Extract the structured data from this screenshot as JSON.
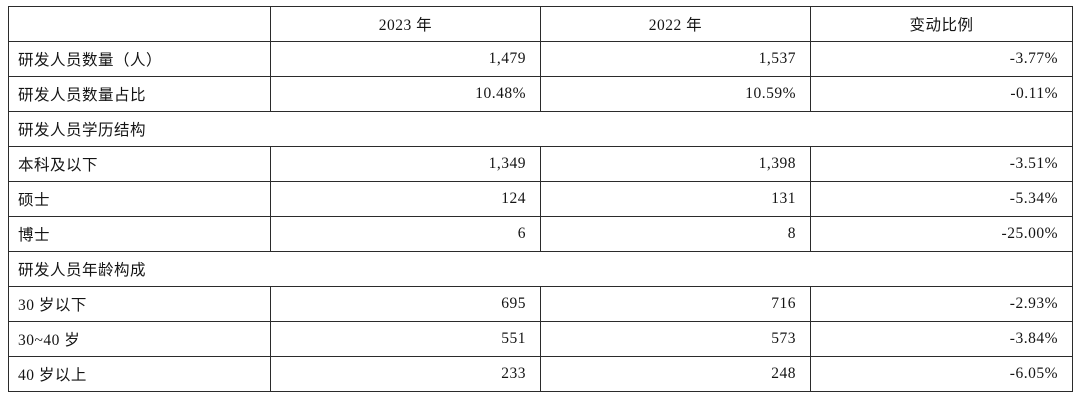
{
  "table": {
    "headers": [
      "",
      "2023 年",
      "2022 年",
      "变动比例"
    ],
    "rows": [
      {
        "type": "data",
        "label": "研发人员数量（人）",
        "v2023": "1,479",
        "v2022": "1,537",
        "change": "-3.77%"
      },
      {
        "type": "data",
        "label": "研发人员数量占比",
        "v2023": "10.48%",
        "v2022": "10.59%",
        "change": "-0.11%"
      },
      {
        "type": "section",
        "label": "研发人员学历结构"
      },
      {
        "type": "data",
        "label": "本科及以下",
        "v2023": "1,349",
        "v2022": "1,398",
        "change": "-3.51%"
      },
      {
        "type": "data",
        "label": "硕士",
        "v2023": "124",
        "v2022": "131",
        "change": "-5.34%"
      },
      {
        "type": "data",
        "label": "博士",
        "v2023": "6",
        "v2022": "8",
        "change": "-25.00%"
      },
      {
        "type": "section",
        "label": "研发人员年龄构成"
      },
      {
        "type": "data",
        "label": "30 岁以下",
        "v2023": "695",
        "v2022": "716",
        "change": "-2.93%"
      },
      {
        "type": "data",
        "label": "30~40 岁",
        "v2023": "551",
        "v2022": "573",
        "change": "-3.84%"
      },
      {
        "type": "data",
        "label": "40 岁以上",
        "v2023": "233",
        "v2022": "248",
        "change": "-6.05%"
      }
    ]
  }
}
